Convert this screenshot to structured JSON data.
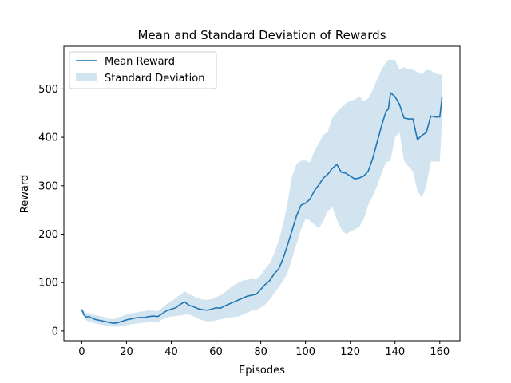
{
  "chart_data": {
    "type": "line",
    "title": "Mean and Standard Deviation of Rewards",
    "xlabel": "Episodes",
    "ylabel": "Reward",
    "xlim": [
      -8,
      169
    ],
    "ylim": [
      -20,
      588
    ],
    "xticks": [
      0,
      20,
      40,
      60,
      80,
      100,
      120,
      140,
      160
    ],
    "yticks": [
      0,
      100,
      200,
      300,
      400,
      500
    ],
    "grid": false,
    "legend_position": "top-left",
    "series": [
      {
        "name": "Mean Reward",
        "kind": "line",
        "color": "#1f77b4",
        "x": [
          0,
          1,
          2,
          3,
          4,
          5,
          6,
          8,
          10,
          12,
          14,
          16,
          18,
          20,
          22,
          24,
          26,
          28,
          30,
          32,
          34,
          36,
          38,
          40,
          42,
          44,
          46,
          48,
          50,
          52,
          54,
          56,
          58,
          60,
          62,
          64,
          66,
          68,
          70,
          72,
          74,
          76,
          78,
          80,
          82,
          84,
          86,
          88,
          90,
          92,
          94,
          96,
          98,
          100,
          102,
          104,
          106,
          108,
          110,
          112,
          114,
          116,
          118,
          120,
          122,
          124,
          126,
          128,
          130,
          132,
          134,
          136,
          137,
          138,
          140,
          142,
          144,
          146,
          148,
          150,
          152,
          154,
          156,
          158,
          160,
          161
        ],
        "y": [
          45,
          33,
          29,
          30,
          28,
          26,
          24,
          22,
          20,
          18,
          16,
          17,
          20,
          23,
          25,
          27,
          28,
          28,
          30,
          31,
          30,
          36,
          42,
          45,
          48,
          55,
          60,
          53,
          50,
          46,
          44,
          43,
          45,
          48,
          47,
          52,
          56,
          60,
          64,
          68,
          72,
          74,
          76,
          86,
          96,
          104,
          118,
          128,
          150,
          178,
          208,
          238,
          260,
          264,
          272,
          290,
          302,
          316,
          324,
          336,
          344,
          328,
          326,
          320,
          314,
          316,
          320,
          330,
          356,
          390,
          424,
          454,
          458,
          492,
          484,
          468,
          440,
          438,
          438,
          395,
          404,
          410,
          444,
          442,
          442,
          482
        ]
      },
      {
        "name": "Standard Deviation",
        "kind": "band",
        "color": "#1f77b4",
        "opacity": 0.2,
        "x": [
          0,
          2,
          4,
          6,
          8,
          10,
          12,
          14,
          16,
          18,
          20,
          22,
          24,
          26,
          28,
          30,
          32,
          34,
          36,
          38,
          40,
          42,
          44,
          46,
          48,
          50,
          52,
          54,
          56,
          58,
          60,
          62,
          64,
          66,
          68,
          70,
          72,
          74,
          76,
          78,
          80,
          82,
          84,
          86,
          88,
          90,
          92,
          94,
          96,
          98,
          100,
          102,
          104,
          106,
          108,
          110,
          112,
          114,
          116,
          118,
          120,
          122,
          124,
          126,
          128,
          130,
          132,
          134,
          136,
          137,
          138,
          140,
          142,
          144,
          146,
          148,
          150,
          152,
          154,
          156,
          158,
          160,
          161
        ],
        "upper": [
          45,
          38,
          36,
          33,
          31,
          29,
          26,
          24,
          28,
          31,
          34,
          36,
          38,
          40,
          41,
          43,
          42,
          41,
          48,
          56,
          62,
          68,
          75,
          82,
          76,
          72,
          68,
          65,
          64,
          66,
          70,
          74,
          80,
          88,
          95,
          100,
          104,
          106,
          108,
          106,
          116,
          128,
          140,
          160,
          186,
          220,
          265,
          320,
          345,
          352,
          352,
          348,
          372,
          388,
          405,
          412,
          440,
          452,
          462,
          470,
          475,
          478,
          485,
          475,
          480,
          498,
          520,
          540,
          555,
          560,
          560,
          560,
          540,
          545,
          540,
          540,
          535,
          530,
          540,
          538,
          532,
          530,
          530
        ],
        "lower": [
          38,
          22,
          18,
          16,
          14,
          12,
          10,
          9,
          9,
          10,
          12,
          14,
          15,
          16,
          17,
          18,
          19,
          19,
          24,
          28,
          30,
          31,
          32,
          34,
          34,
          30,
          26,
          22,
          20,
          20,
          22,
          24,
          26,
          28,
          29,
          30,
          34,
          38,
          42,
          44,
          48,
          55,
          65,
          78,
          90,
          104,
          120,
          150,
          180,
          210,
          232,
          228,
          220,
          212,
          228,
          248,
          256,
          230,
          210,
          200,
          205,
          210,
          215,
          230,
          260,
          278,
          300,
          325,
          350,
          350,
          352,
          400,
          410,
          352,
          340,
          330,
          290,
          275,
          300,
          350,
          350,
          350,
          430
        ]
      }
    ]
  }
}
